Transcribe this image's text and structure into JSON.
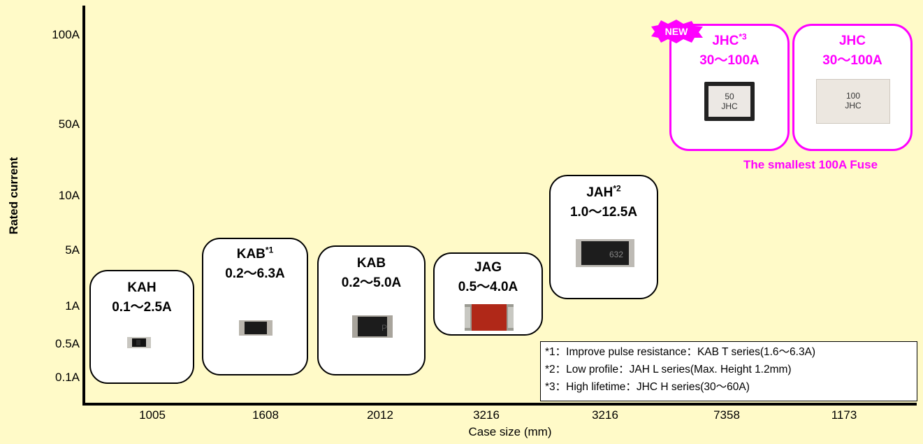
{
  "axes": {
    "y_label": "Rated current",
    "x_label": "Case size (mm)",
    "y_ticks": [
      "100A",
      "50A",
      "10A",
      "5A",
      "1A",
      "0.5A",
      "0.1A"
    ],
    "x_ticks": [
      "1005",
      "1608",
      "2012",
      "3216",
      "3216",
      "7358",
      "1173"
    ]
  },
  "cards": [
    {
      "name": "KAH",
      "sup": "",
      "range": "0.1〜2.5A"
    },
    {
      "name": "KAB",
      "sup": "*1",
      "range": "0.2〜6.3A"
    },
    {
      "name": "KAB",
      "sup": "",
      "range": "0.2〜5.0A"
    },
    {
      "name": "JAG",
      "sup": "",
      "range": "0.5〜4.0A"
    },
    {
      "name": "JAH",
      "sup": "*2",
      "range": "1.0〜12.5A"
    },
    {
      "name": "JHC",
      "sup": "*3",
      "range": "30〜100A",
      "chip_text": [
        "50",
        "JHC"
      ]
    },
    {
      "name": "JHC",
      "sup": "",
      "range": "30〜100A",
      "chip_text": [
        "100",
        "JHC"
      ]
    }
  ],
  "chip_marks": {
    "kab2012": "P",
    "jah": "632"
  },
  "badge": {
    "text": "NEW"
  },
  "tagline": "The smallest 100A Fuse",
  "notes": [
    "*1：Improve pulse resistance：KAB T series(1.6〜6.3A)",
    "*2：Low profile：JAH L series(Max. Height 1.2mm)",
    "*3：High lifetime：JHC H series(30〜60A)"
  ],
  "colors": {
    "background": "#fffac8",
    "highlight": "#ff00ff"
  }
}
